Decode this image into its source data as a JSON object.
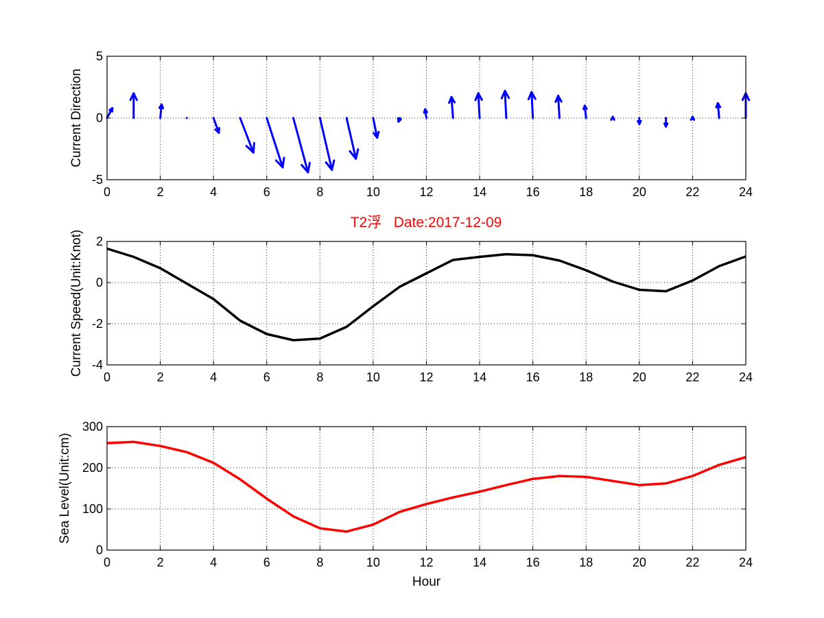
{
  "figure_title": "T2浮   Date:2017-12-09",
  "colors": {
    "direction": "#0000ff",
    "speed": "#000000",
    "level": "#ff0000",
    "title": "#ff0000"
  },
  "chart_data": [
    {
      "type": "line",
      "subtype": "quiver",
      "ylabel": "Current Direction",
      "xlabel": "",
      "xlim": [
        0,
        24
      ],
      "ylim": [
        -5,
        5
      ],
      "xticks": [
        0,
        2,
        4,
        6,
        8,
        10,
        12,
        14,
        16,
        18,
        20,
        22,
        24
      ],
      "yticks": [
        -5,
        0,
        5
      ],
      "grid": true,
      "series": [
        {
          "x": [
            0,
            1,
            2,
            3,
            4,
            5,
            6,
            7,
            8,
            9,
            10,
            11,
            12,
            13,
            14,
            15,
            16,
            17,
            18,
            19,
            20,
            21,
            22,
            23,
            24
          ],
          "u": [
            0.2,
            0,
            0.05,
            0,
            0.2,
            0.5,
            0.6,
            0.55,
            0.45,
            0.35,
            0.15,
            -0.05,
            -0.05,
            -0.06,
            -0.05,
            -0.05,
            -0.05,
            -0.05,
            -0.05,
            0,
            0,
            0,
            0,
            -0.05,
            0
          ],
          "v": [
            0.8,
            2.0,
            1.1,
            0.05,
            -1.2,
            -2.8,
            -4.0,
            -4.4,
            -4.2,
            -3.3,
            -1.6,
            -0.3,
            0.7,
            1.7,
            2.0,
            2.2,
            2.1,
            1.8,
            1.0,
            0.1,
            -0.5,
            -0.7,
            0.1,
            1.2,
            2.0
          ]
        }
      ]
    },
    {
      "type": "line",
      "ylabel": "Current Speed(Unit:Knot)",
      "xlabel": "",
      "xlim": [
        0,
        24
      ],
      "ylim": [
        -4,
        2
      ],
      "xticks": [
        0,
        2,
        4,
        6,
        8,
        10,
        12,
        14,
        16,
        18,
        20,
        22,
        24
      ],
      "yticks": [
        -4,
        -2,
        0,
        2
      ],
      "grid": true,
      "series": [
        {
          "x": [
            0,
            1,
            2,
            3,
            4,
            5,
            6,
            7,
            8,
            9,
            10,
            11,
            12,
            13,
            14,
            15,
            16,
            17,
            18,
            19,
            20,
            21,
            22,
            23,
            24
          ],
          "values": [
            1.65,
            1.25,
            0.7,
            -0.05,
            -0.8,
            -1.85,
            -2.5,
            -2.8,
            -2.72,
            -2.15,
            -1.15,
            -0.2,
            0.45,
            1.1,
            1.25,
            1.38,
            1.33,
            1.07,
            0.6,
            0.05,
            -0.35,
            -0.42,
            0.1,
            0.8,
            1.27
          ]
        }
      ]
    },
    {
      "type": "line",
      "ylabel": "Sea Level(Unit:cm)",
      "xlabel": "Hour",
      "xlim": [
        0,
        24
      ],
      "ylim": [
        0,
        300
      ],
      "xticks": [
        0,
        2,
        4,
        6,
        8,
        10,
        12,
        14,
        16,
        18,
        20,
        22,
        24
      ],
      "yticks": [
        0,
        100,
        200,
        300
      ],
      "grid": true,
      "series": [
        {
          "x": [
            0,
            1,
            2,
            3,
            4,
            5,
            6,
            7,
            8,
            9,
            10,
            11,
            12,
            13,
            14,
            15,
            16,
            17,
            18,
            19,
            20,
            21,
            22,
            23,
            24
          ],
          "values": [
            260,
            263,
            253,
            238,
            212,
            172,
            125,
            82,
            53,
            45,
            62,
            93,
            112,
            128,
            142,
            158,
            173,
            180,
            178,
            168,
            158,
            162,
            180,
            207,
            226
          ]
        }
      ]
    }
  ]
}
